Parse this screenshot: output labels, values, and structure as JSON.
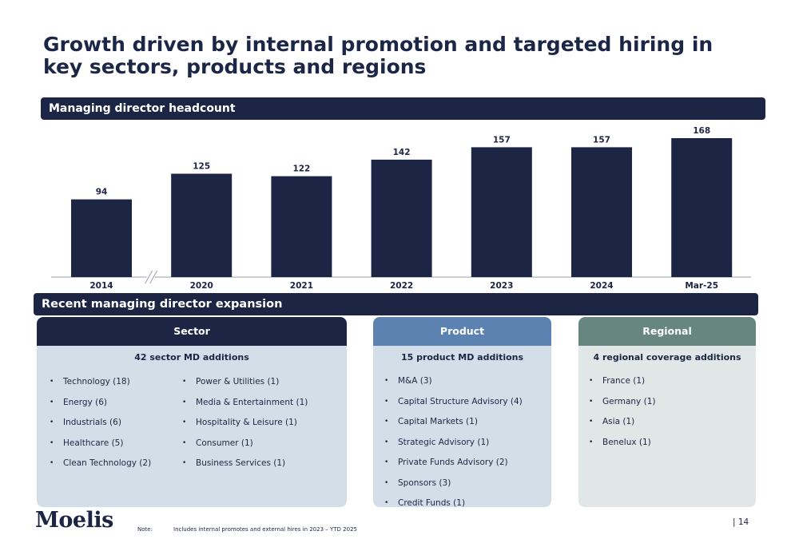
{
  "title": "Growth driven by internal promotion and targeted hiring in key sectors, products and regions",
  "headcount_band": "Managing director headcount",
  "expansion_band": "Recent managing director expansion",
  "chart_data": {
    "type": "bar",
    "title": "Managing director headcount",
    "categories": [
      "2014",
      "2020",
      "2021",
      "2022",
      "2023",
      "2024",
      "Mar-25"
    ],
    "values": [
      94,
      125,
      122,
      142,
      157,
      157,
      168
    ],
    "data_labels": [
      "94",
      "125",
      "122",
      "142",
      "157",
      "157",
      "168"
    ],
    "xlabel": "",
    "ylabel": "",
    "ylim": [
      0,
      168
    ],
    "grid": false,
    "legend": "none",
    "axis_break_after_category": "2014",
    "bar_color": "#1d2545"
  },
  "sector": {
    "header": "Sector",
    "subtitle": "42 sector MD additions",
    "col_a": [
      "Technology (18)",
      "Energy (6)",
      "Industrials (6)",
      "Healthcare (5)",
      "Clean Technology (2)"
    ],
    "col_b": [
      "Power & Utilities (1)",
      "Media & Entertainment (1)",
      "Hospitality & Leisure (1)",
      "Consumer (1)",
      "Business Services (1)"
    ]
  },
  "product": {
    "header": "Product",
    "subtitle": "15 product MD additions",
    "items": [
      "M&A (3)",
      "Capital Structure Advisory (4)",
      "Capital Markets (1)",
      "Strategic Advisory (1)",
      "Private Funds Advisory (2)",
      "Sponsors (3)",
      "Credit Funds (1)"
    ]
  },
  "regional": {
    "header": "Regional",
    "subtitle": "4 regional coverage additions",
    "items": [
      "France (1)",
      "Germany (1)",
      "Asia (1)",
      "Benelux (1)"
    ]
  },
  "footer": {
    "logo": "Moelis",
    "note_label": "Note:",
    "note_text": "Includes internal promotes and external hires in 2023 – YTD 2025",
    "page": "|  14"
  },
  "colors": {
    "navy": "#1d2545",
    "product_blue": "#5b82b0",
    "regional_green": "#688680",
    "card_blue": "#d4dee8",
    "card_grey": "#e1e6e7"
  }
}
